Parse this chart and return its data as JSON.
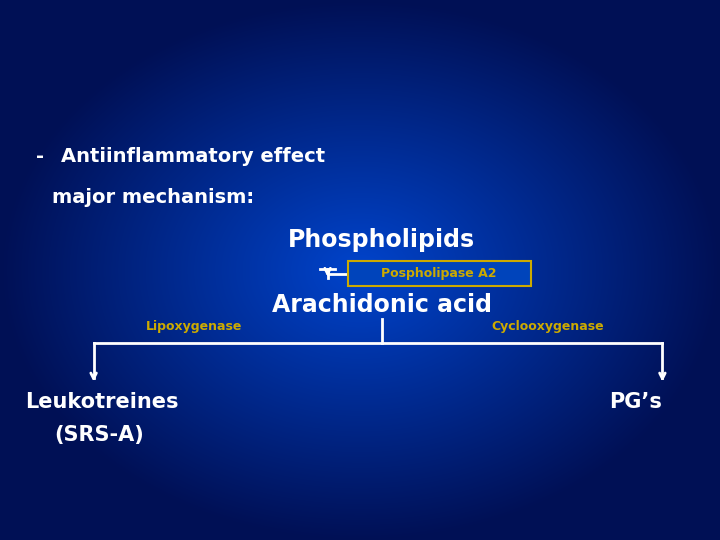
{
  "bg_color_center": "#0044CC",
  "bg_color_edge": "#001055",
  "title_bullet": "-",
  "title_line1": "Antiinflammatory effect",
  "title_line2": "major mechanism:",
  "phospholipids": "Phospholipids",
  "pospholipase_label": "Pospholipase A2",
  "arachidonic": "Arachidonic acid",
  "lipoxygenase": "Lipoxygenase",
  "cyclooxygenase": "Cyclooxygenase",
  "leukotreines": "Leukotreines",
  "srs_a": "(SRS-A)",
  "pgs": "PG’s",
  "white": "#FFFFFF",
  "yellow": "#CCAA00",
  "box_fill": "#0044BB",
  "box_border": "#CCAA00"
}
